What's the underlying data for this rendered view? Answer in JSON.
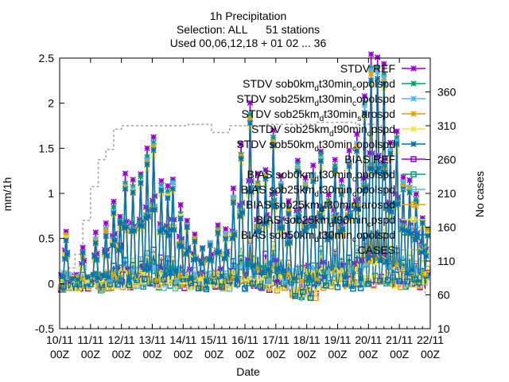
{
  "chart_data": {
    "type": "line",
    "title_lines": [
      "1h Precipitation",
      "Selection: ALL      51 stations",
      "Used 00,06,12,18 + 01 02 ... 36"
    ],
    "xlabel": "Date",
    "ylabel": "mm/1h",
    "y2label": "No cases",
    "xlim": [
      0,
      288
    ],
    "ylim": [
      -0.5,
      2.5
    ],
    "y2lim": [
      10,
      410
    ],
    "x_ticks": [
      {
        "x": 0,
        "top": "10/11",
        "bottom": "00Z"
      },
      {
        "x": 24,
        "top": "11/11",
        "bottom": "00Z"
      },
      {
        "x": 48,
        "top": "12/11",
        "bottom": "00Z"
      },
      {
        "x": 72,
        "top": "13/11",
        "bottom": "00Z"
      },
      {
        "x": 96,
        "top": "14/11",
        "bottom": "00Z"
      },
      {
        "x": 120,
        "top": "15/11",
        "bottom": "00Z"
      },
      {
        "x": 144,
        "top": "16/11",
        "bottom": "00Z"
      },
      {
        "x": 168,
        "top": "17/11",
        "bottom": "00Z"
      },
      {
        "x": 192,
        "top": "18/11",
        "bottom": "00Z"
      },
      {
        "x": 216,
        "top": "19/11",
        "bottom": "00Z"
      },
      {
        "x": 240,
        "top": "20/11",
        "bottom": "00Z"
      },
      {
        "x": 264,
        "top": "21/11",
        "bottom": "00Z"
      },
      {
        "x": 288,
        "top": "22/11",
        "bottom": "00Z"
      }
    ],
    "y_ticks": [
      {
        "v": -0.5,
        "label": "-0.5"
      },
      {
        "v": 0,
        "label": "0"
      },
      {
        "v": 0.5,
        "label": "0.5"
      },
      {
        "v": 1,
        "label": "1"
      },
      {
        "v": 1.5,
        "label": "1.5"
      },
      {
        "v": 2,
        "label": "2"
      },
      {
        "v": 2.5,
        "label": "2.5"
      }
    ],
    "y2_ticks": [
      {
        "v": 10,
        "label": "10"
      },
      {
        "v": 60,
        "label": "60"
      },
      {
        "v": 110,
        "label": "110"
      },
      {
        "v": 160,
        "label": "160"
      },
      {
        "v": 210,
        "label": "210"
      },
      {
        "v": 260,
        "label": "260"
      },
      {
        "v": 310,
        "label": "310"
      },
      {
        "v": 360,
        "label": "360"
      }
    ],
    "series": [
      {
        "name": "STDV REF",
        "color": "#9400d3",
        "marker": "x",
        "dash": false
      },
      {
        "name": "STDV sob0km_dt30min_copolspd",
        "color": "#009e73",
        "marker": "x",
        "dash": false
      },
      {
        "name": "STDV sob25km_dt30min_copolspd",
        "color": "#56b4e9",
        "marker": "x",
        "dash": false
      },
      {
        "name": "STDV sob25km_dt30min_sarospd",
        "color": "#e69f00",
        "marker": "x",
        "dash": false
      },
      {
        "name": "STDV sob25km_dt90min_cpspd",
        "color": "#f0e442",
        "marker": "x",
        "dash": false
      },
      {
        "name": "STDV sob50km_dt30min_copolspd",
        "color": "#0072b2",
        "marker": "x",
        "dash": false
      },
      {
        "name": "BIAS REF",
        "color": "#9400d3",
        "marker": "square",
        "dash": false
      },
      {
        "name": "BIAS sob0km_dt30min_copolspd",
        "color": "#009e73",
        "marker": "square",
        "dash": false
      },
      {
        "name": "BIAS sob25km_dt30min_copolspd",
        "color": "#56b4e9",
        "marker": "square",
        "dash": false
      },
      {
        "name": "BIAS sob25km_dt30min_sarospd",
        "color": "#e69f00",
        "marker": "square",
        "dash": false
      },
      {
        "name": "BIAS sob25km_dt90min_cpspd",
        "color": "#f0e442",
        "marker": "square",
        "dash": false
      },
      {
        "name": "BIAS sob50km_dt30min_copolspd",
        "color": "#0072b2",
        "marker": "square",
        "dash": false
      },
      {
        "name": "CASES",
        "color": "#a0a0a0",
        "marker": "none",
        "dash": true
      }
    ],
    "legend_labels": [
      {
        "a": "STDV REF",
        "sub": "",
        "b": ""
      },
      {
        "a": "STDV sob0km",
        "sub": "d",
        "b": "t30min",
        "sub2": "c",
        "c": "opolspd"
      },
      {
        "a": "STDV sob25km",
        "sub": "d",
        "b": "t30min",
        "sub2": "c",
        "c": "opolspd"
      },
      {
        "a": "STDV sob25km",
        "sub": "d",
        "b": "t30min",
        "sub2": "s",
        "c": "arospd"
      },
      {
        "a": "STDV sob25km",
        "sub": "d",
        "b": "t90min",
        "sub2": "c",
        "c": "pspd"
      },
      {
        "a": "STDV sob50km",
        "sub": "d",
        "b": "t30min",
        "sub2": "c",
        "c": "opolspd"
      },
      {
        "a": "BIAS REF",
        "sub": "",
        "b": ""
      },
      {
        "a": "BIAS sob0km",
        "sub": "d",
        "b": "t30min",
        "sub2": "c",
        "c": "opolspd"
      },
      {
        "a": "BIAS sob25km",
        "sub": "d",
        "b": "t30min",
        "sub2": "c",
        "c": "opolspd"
      },
      {
        "a": "BIAS sob25km",
        "sub": "d",
        "b": "t30min",
        "sub2": "s",
        "c": "arospd"
      },
      {
        "a": "BIAS sob25km",
        "sub": "d",
        "b": "t90min",
        "sub2": "c",
        "c": "pspd"
      },
      {
        "a": "BIAS sob50km",
        "sub": "d",
        "b": "t30min",
        "sub2": "c",
        "c": "opolspd"
      },
      {
        "a": "CASES",
        "sub": "",
        "b": ""
      }
    ],
    "stdv_peaks": [
      {
        "x": 5,
        "v": 0.5
      },
      {
        "x": 18,
        "v": 0.3
      },
      {
        "x": 28,
        "v": 0.45
      },
      {
        "x": 36,
        "v": 0.55
      },
      {
        "x": 42,
        "v": 0.8
      },
      {
        "x": 47,
        "v": 0.65
      },
      {
        "x": 51,
        "v": 1.1
      },
      {
        "x": 57,
        "v": 1.05
      },
      {
        "x": 63,
        "v": 1.15
      },
      {
        "x": 68,
        "v": 1.37
      },
      {
        "x": 73,
        "v": 1.55
      },
      {
        "x": 79,
        "v": 1.05
      },
      {
        "x": 84,
        "v": 1.0
      },
      {
        "x": 88,
        "v": 1.1
      },
      {
        "x": 94,
        "v": 0.75
      },
      {
        "x": 99,
        "v": 0.6
      },
      {
        "x": 105,
        "v": 0.45
      },
      {
        "x": 111,
        "v": 0.35
      },
      {
        "x": 117,
        "v": 0.4
      },
      {
        "x": 123,
        "v": 0.55
      },
      {
        "x": 129,
        "v": 0.5
      },
      {
        "x": 135,
        "v": 0.95
      },
      {
        "x": 141,
        "v": 1.45
      },
      {
        "x": 148,
        "v": 1.9
      },
      {
        "x": 154,
        "v": 1.1
      },
      {
        "x": 160,
        "v": 1.2
      },
      {
        "x": 166,
        "v": 1.6
      },
      {
        "x": 172,
        "v": 1.1
      },
      {
        "x": 178,
        "v": 0.8
      },
      {
        "x": 185,
        "v": 1.3
      },
      {
        "x": 191,
        "v": 1.1
      },
      {
        "x": 197,
        "v": 1.2
      },
      {
        "x": 203,
        "v": 1.4
      },
      {
        "x": 209,
        "v": 0.9
      },
      {
        "x": 214,
        "v": 1.3
      },
      {
        "x": 219,
        "v": 1.05
      },
      {
        "x": 225,
        "v": 1.35
      },
      {
        "x": 231,
        "v": 1.55
      },
      {
        "x": 237,
        "v": 2.0
      },
      {
        "x": 242,
        "v": 2.42
      },
      {
        "x": 247,
        "v": 2.42
      },
      {
        "x": 252,
        "v": 2.35
      },
      {
        "x": 257,
        "v": 1.5
      },
      {
        "x": 262,
        "v": 1.6
      },
      {
        "x": 267,
        "v": 1.1
      },
      {
        "x": 272,
        "v": 1.05
      },
      {
        "x": 277,
        "v": 0.9
      },
      {
        "x": 282,
        "v": 0.65
      },
      {
        "x": 286,
        "v": 0.55
      }
    ],
    "cases_steps": [
      {
        "x": 0,
        "v": 70
      },
      {
        "x": 6,
        "v": 100
      },
      {
        "x": 12,
        "v": 120
      },
      {
        "x": 18,
        "v": 170
      },
      {
        "x": 24,
        "v": 220
      },
      {
        "x": 30,
        "v": 260
      },
      {
        "x": 36,
        "v": 275
      },
      {
        "x": 42,
        "v": 305
      },
      {
        "x": 48,
        "v": 310
      },
      {
        "x": 100,
        "v": 312
      },
      {
        "x": 118,
        "v": 300
      },
      {
        "x": 132,
        "v": 310
      },
      {
        "x": 160,
        "v": 312
      },
      {
        "x": 200,
        "v": 315
      },
      {
        "x": 230,
        "v": 312
      },
      {
        "x": 250,
        "v": 300
      },
      {
        "x": 262,
        "v": 220
      },
      {
        "x": 272,
        "v": 160
      },
      {
        "x": 280,
        "v": 110
      },
      {
        "x": 284,
        "v": 60
      },
      {
        "x": 288,
        "v": 60
      }
    ]
  }
}
